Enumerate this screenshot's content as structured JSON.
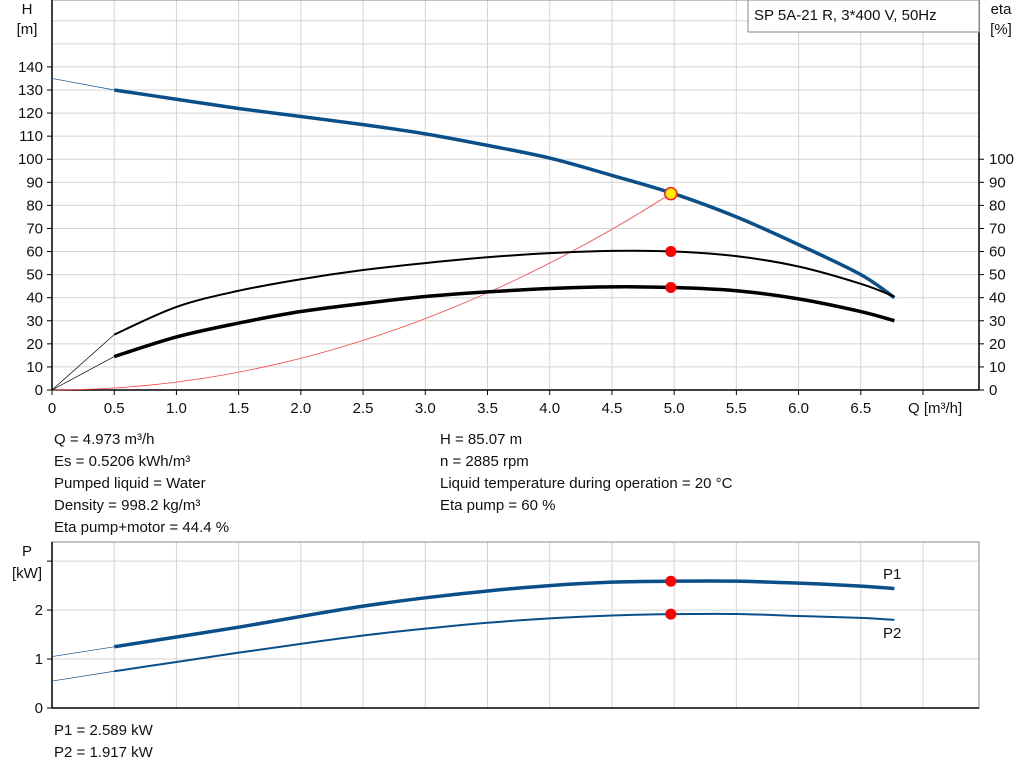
{
  "chart_data": [
    {
      "type": "line",
      "title": "SP 5A-21 R, 3*400 V, 50Hz",
      "xlabel": "Q [m³/h]",
      "ylabel": [
        "H",
        "[m]"
      ],
      "ylabel_right": [
        "eta",
        "[%]"
      ],
      "xlim": [
        0,
        7.45
      ],
      "ylim": [
        0,
        169
      ],
      "ylim_right": [
        0,
        169
      ],
      "grid": true,
      "x_ticks": [
        "0",
        "0.5",
        "1.0",
        "1.5",
        "2.0",
        "2.5",
        "3.0",
        "3.5",
        "4.0",
        "4.5",
        "5.0",
        "5.5",
        "6.0",
        "6.5"
      ],
      "y_ticks": [
        0,
        10,
        20,
        30,
        40,
        50,
        60,
        70,
        80,
        90,
        100,
        110,
        120,
        130,
        140
      ],
      "y_ticks_right": [
        0,
        10,
        20,
        30,
        40,
        50,
        60,
        70,
        80,
        90,
        100
      ],
      "x": [
        0.5,
        1.0,
        1.5,
        2.0,
        2.5,
        3.0,
        3.5,
        4.0,
        4.5,
        5.0,
        5.5,
        6.0,
        6.5,
        6.77
      ],
      "series": [
        {
          "key": "H",
          "color": "#0b4f8a",
          "extension": [
            0,
            135
          ],
          "values": [
            130,
            126,
            122,
            118.5,
            115,
            111,
            106,
            100.5,
            93,
            85,
            75,
            63,
            50,
            40
          ]
        },
        {
          "key": "eta_pump",
          "color": "#000000",
          "extension": [
            0,
            0
          ],
          "values": [
            24,
            36,
            43,
            48,
            52,
            55,
            57.5,
            59.3,
            60.3,
            60,
            58,
            53.5,
            46,
            40.5
          ]
        },
        {
          "key": "eta_total",
          "color": "#000000",
          "extension": [
            0,
            0
          ],
          "values": [
            14.5,
            23,
            29,
            34,
            37.5,
            40.5,
            42.5,
            44,
            44.7,
            44.4,
            43,
            39.5,
            34,
            30
          ]
        }
      ],
      "system_curve": {
        "color": "#ff4444",
        "q": 4.973,
        "h": 85.07
      },
      "duty_points": [
        {
          "x": 4.973,
          "y": 85.07,
          "color": "#ffee00"
        },
        {
          "x": 4.973,
          "y": 60,
          "color": "#ff0000"
        },
        {
          "x": 4.973,
          "y": 44.4,
          "color": "#ff0000"
        }
      ]
    },
    {
      "type": "line",
      "ylabel": [
        "P",
        "[kW]"
      ],
      "xlim": [
        0,
        7.45
      ],
      "ylim": [
        0,
        3.39
      ],
      "grid": true,
      "y_ticks": [
        0,
        1,
        2
      ],
      "x": [
        0.5,
        1.0,
        1.5,
        2.0,
        2.5,
        3.0,
        3.5,
        4.0,
        4.5,
        5.0,
        5.5,
        6.0,
        6.5,
        6.77
      ],
      "series": [
        {
          "name": "P1",
          "color": "#0b4f8a",
          "extension": [
            0,
            1.05
          ],
          "values": [
            1.25,
            1.45,
            1.65,
            1.87,
            2.08,
            2.25,
            2.39,
            2.5,
            2.57,
            2.59,
            2.59,
            2.55,
            2.49,
            2.44
          ]
        },
        {
          "name": "P2",
          "color": "#0b4f8a",
          "extension": [
            0,
            0.55
          ],
          "values": [
            0.75,
            0.94,
            1.13,
            1.31,
            1.48,
            1.62,
            1.74,
            1.83,
            1.89,
            1.917,
            1.92,
            1.88,
            1.84,
            1.8
          ]
        }
      ],
      "duty_points": [
        {
          "x": 4.973,
          "y": 2.589,
          "color": "#ff0000"
        },
        {
          "x": 4.973,
          "y": 1.917,
          "color": "#ff0000"
        }
      ]
    }
  ],
  "info": {
    "left": [
      "Q = 4.973 m³/h",
      "Es = 0.5206 kWh/m³",
      "Pumped liquid = Water",
      "Density = 998.2 kg/m³",
      "Eta pump+motor = 44.4 %"
    ],
    "right": [
      "H = 85.07 m",
      "n = 2885 rpm",
      "Liquid temperature during operation = 20 °C",
      "Eta pump = 60 %"
    ],
    "power": [
      "P1 = 2.589 kW",
      "P2 = 1.917 kW"
    ]
  }
}
